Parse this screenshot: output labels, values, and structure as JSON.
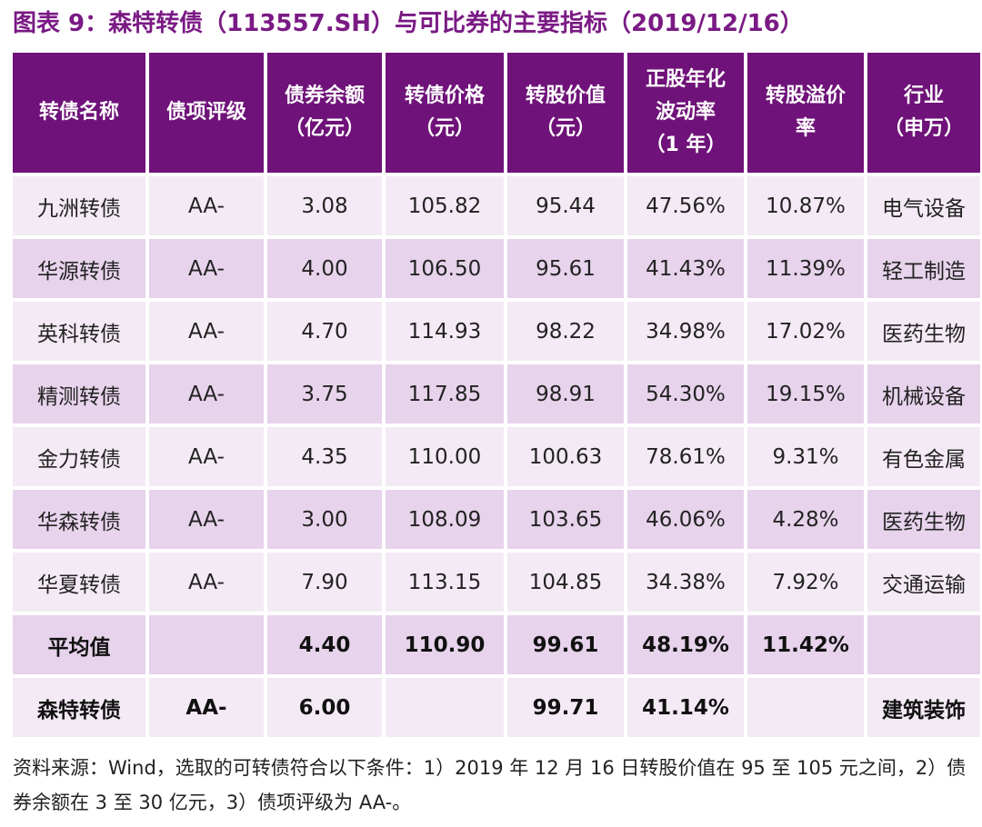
{
  "title": "图表 9：森特转债（113557.SH）与可比券的主要指标（2019/12/16）",
  "columns": [
    "转债名称",
    "债项评级",
    "债券余额\n（亿元）",
    "转债价格\n（元）",
    "转股价值\n（元）",
    "正股年化\n波动率\n（1 年）",
    "转股溢价\n率",
    "行业\n（申万）"
  ],
  "rows": [
    [
      "九洲转债",
      "AA-",
      "3.08",
      "105.82",
      "95.44",
      "47.56%",
      "10.87%",
      "电气设备"
    ],
    [
      "华源转债",
      "AA-",
      "4.00",
      "106.50",
      "95.61",
      "41.43%",
      "11.39%",
      "轻工制造"
    ],
    [
      "英科转债",
      "AA-",
      "4.70",
      "114.93",
      "98.22",
      "34.98%",
      "17.02%",
      "医药生物"
    ],
    [
      "精测转债",
      "AA-",
      "3.75",
      "117.85",
      "98.91",
      "54.30%",
      "19.15%",
      "机械设备"
    ],
    [
      "金力转债",
      "AA-",
      "4.35",
      "110.00",
      "100.63",
      "78.61%",
      "9.31%",
      "有色金属"
    ],
    [
      "华森转债",
      "AA-",
      "3.00",
      "108.09",
      "103.65",
      "46.06%",
      "4.28%",
      "医药生物"
    ],
    [
      "华夏转债",
      "AA-",
      "7.90",
      "113.15",
      "104.85",
      "34.38%",
      "7.92%",
      "交通运输"
    ]
  ],
  "average": [
    "平均值",
    "",
    "4.40",
    "110.90",
    "99.61",
    "48.19%",
    "11.42%",
    ""
  ],
  "target": [
    "森特转债",
    "AA-",
    "6.00",
    "",
    "99.71",
    "41.14%",
    "",
    "建筑装饰"
  ],
  "note": "资料来源：Wind，选取的可转债符合以下条件：1）2019 年 12 月 16 日转股价值在 95 至 105 元之间，2）债券余额在 3 至 30 亿元，3）债项评级为 AA-。",
  "colors": {
    "header_bg": "#6f1279",
    "title": "#7a1a84",
    "row_light": "#f4eaf5",
    "row_dark": "#e7d3eb"
  }
}
